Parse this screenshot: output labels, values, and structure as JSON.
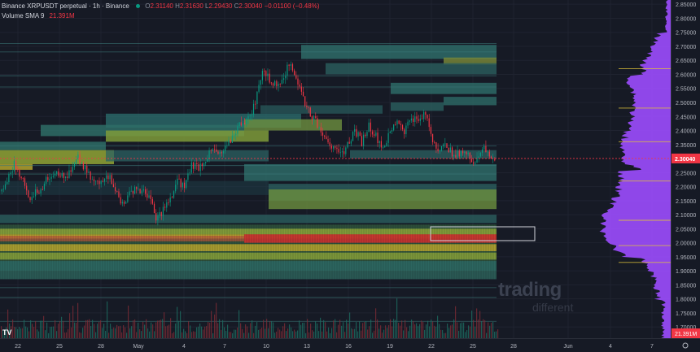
{
  "legend": {
    "symbol": "Binance XRPUSDT perpetual · 1h · Binance",
    "o_label": "O",
    "o_value": "2.31140",
    "h_label": "H",
    "h_value": "2.31630",
    "l_label": "L",
    "l_value": "2.29430",
    "c_label": "C",
    "c_value": "2.30040",
    "change": "−0.01100 (−0.48%)"
  },
  "volume_legend": {
    "name": "Volume SMA 9",
    "value": "21.391M"
  },
  "watermark": {
    "line1": "trading",
    "line2": "different"
  },
  "logo_text": "TV",
  "price_scale": {
    "labels": [
      "2.85000",
      "2.80000",
      "2.75000",
      "2.70000",
      "2.65000",
      "2.60000",
      "2.55000",
      "2.50000",
      "2.45000",
      "2.40000",
      "2.35000",
      "2.25000",
      "2.20000",
      "2.15000",
      "2.10000",
      "2.05000",
      "2.00000",
      "1.95000",
      "1.90000",
      "1.85000",
      "1.80000",
      "1.75000",
      "1.70000"
    ],
    "current_price": "2.30040",
    "volume_value": "21.391M"
  },
  "time_axis": {
    "labels": [
      "22",
      "25",
      "28",
      "May",
      "4",
      "7",
      "10",
      "13",
      "16",
      "19",
      "22",
      "25",
      "28",
      "Jun",
      "4",
      "7"
    ]
  },
  "colors": {
    "background": "#161a25",
    "candle_up": "#089981",
    "candle_down": "#f23645",
    "profile": "#9c4dff",
    "price_line": "#f23645"
  },
  "chart_data": {
    "type": "candlestick",
    "ylim": [
      1.66,
      2.865
    ],
    "current_price": 2.3004,
    "close_path": [
      [
        0,
        2.17
      ],
      [
        2,
        2.22
      ],
      [
        4,
        2.28
      ],
      [
        6,
        2.24
      ],
      [
        8,
        2.16
      ],
      [
        10,
        2.18
      ],
      [
        12,
        2.2
      ],
      [
        14,
        2.24
      ],
      [
        16,
        2.26
      ],
      [
        18,
        2.23
      ],
      [
        20,
        2.25
      ],
      [
        22,
        2.3
      ],
      [
        24,
        2.26
      ],
      [
        26,
        2.22
      ],
      [
        28,
        2.21
      ],
      [
        30,
        2.25
      ],
      [
        32,
        2.21
      ],
      [
        34,
        2.14
      ],
      [
        36,
        2.16
      ],
      [
        38,
        2.2
      ],
      [
        40,
        2.18
      ],
      [
        42,
        2.17
      ],
      [
        44,
        2.08
      ],
      [
        46,
        2.12
      ],
      [
        48,
        2.15
      ],
      [
        50,
        2.22
      ],
      [
        52,
        2.2
      ],
      [
        54,
        2.28
      ],
      [
        56,
        2.27
      ],
      [
        58,
        2.3
      ],
      [
        60,
        2.33
      ],
      [
        62,
        2.31
      ],
      [
        64,
        2.34
      ],
      [
        66,
        2.39
      ],
      [
        68,
        2.43
      ],
      [
        70,
        2.44
      ],
      [
        72,
        2.5
      ],
      [
        74,
        2.62
      ],
      [
        76,
        2.58
      ],
      [
        78,
        2.56
      ],
      [
        80,
        2.6
      ],
      [
        82,
        2.64
      ],
      [
        84,
        2.57
      ],
      [
        86,
        2.5
      ],
      [
        88,
        2.45
      ],
      [
        90,
        2.41
      ],
      [
        92,
        2.38
      ],
      [
        94,
        2.33
      ],
      [
        96,
        2.31
      ],
      [
        98,
        2.35
      ],
      [
        100,
        2.4
      ],
      [
        102,
        2.36
      ],
      [
        104,
        2.42
      ],
      [
        106,
        2.38
      ],
      [
        108,
        2.34
      ],
      [
        110,
        2.39
      ],
      [
        112,
        2.44
      ],
      [
        114,
        2.4
      ],
      [
        116,
        2.45
      ],
      [
        118,
        2.43
      ],
      [
        120,
        2.46
      ],
      [
        122,
        2.37
      ],
      [
        124,
        2.33
      ],
      [
        126,
        2.35
      ],
      [
        128,
        2.3
      ],
      [
        130,
        2.33
      ],
      [
        132,
        2.31
      ],
      [
        134,
        2.29
      ],
      [
        136,
        2.34
      ],
      [
        138,
        2.31
      ],
      [
        140,
        2.3
      ]
    ]
  }
}
